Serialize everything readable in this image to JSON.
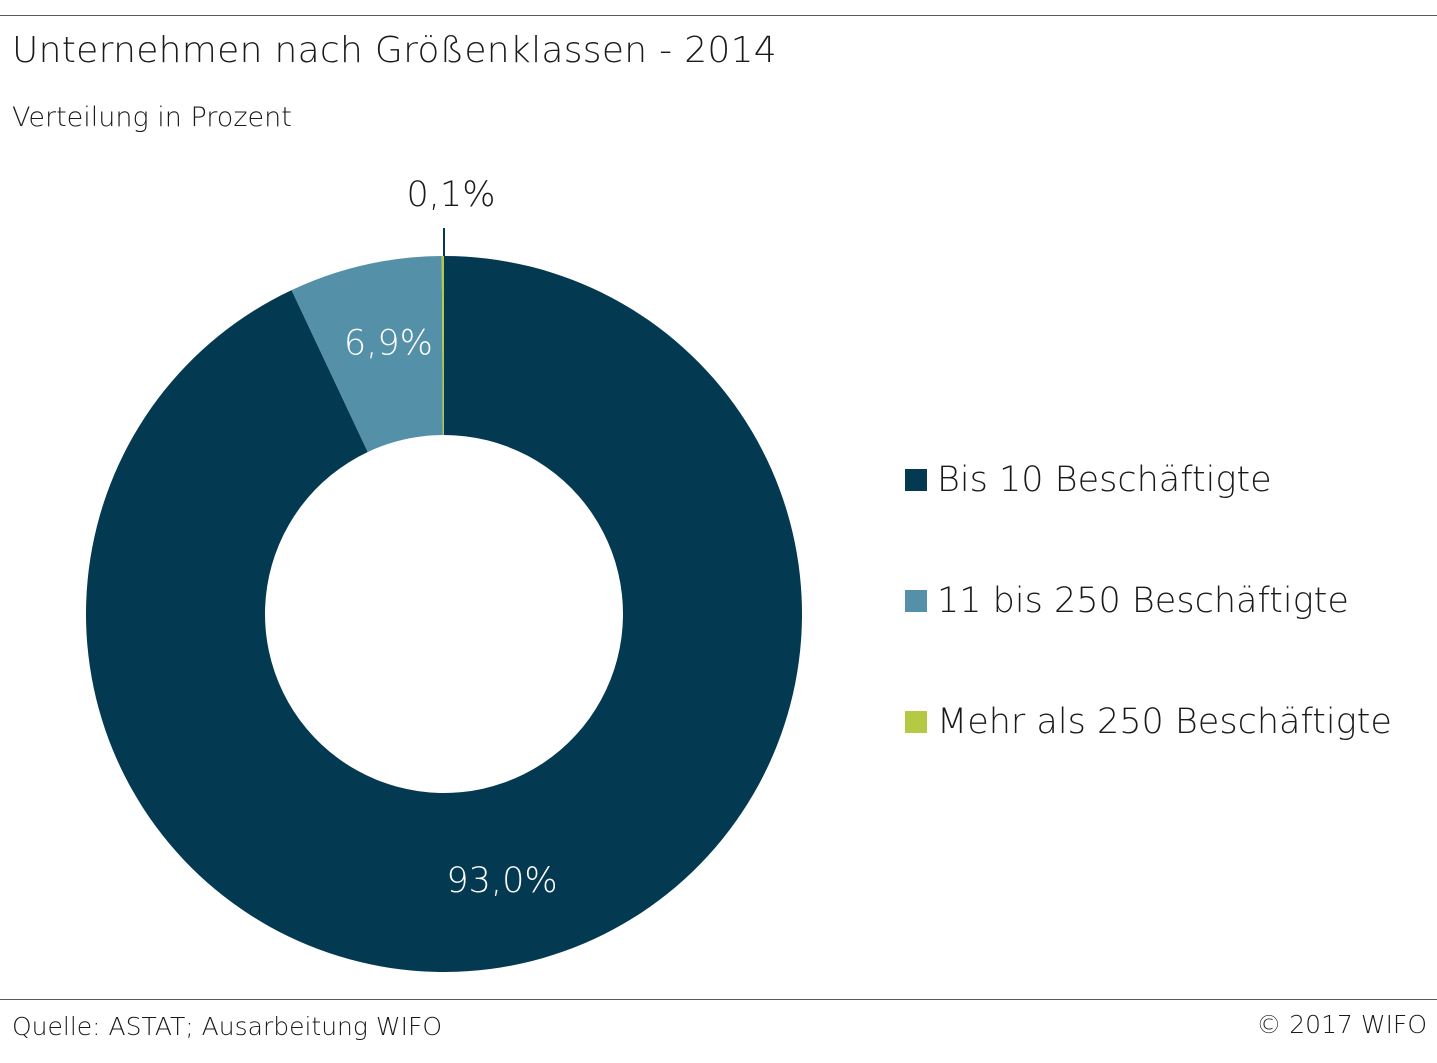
{
  "header": {
    "title": "Unternehmen nach Größenklassen - 2014",
    "subtitle": "Verteilung in Prozent"
  },
  "footer": {
    "source": "Quelle: ASTAT; Ausarbeitung WIFO",
    "copyright": "© 2017 WIFO"
  },
  "chart_data": {
    "type": "pie",
    "title": "Unternehmen nach Größenklassen - 2014",
    "subtitle": "Verteilung in Prozent",
    "variant": "donut",
    "legend_position": "right",
    "slices": [
      {
        "name": "Bis 10 Beschäftigte",
        "value": 93.0,
        "label": "93,0%",
        "color": "#033a51"
      },
      {
        "name": "11 bis 250 Beschäftigte",
        "value": 6.9,
        "label": "6,9%",
        "color": "#5491a8"
      },
      {
        "name": "Mehr als 250 Beschäftigte",
        "value": 0.1,
        "label": "0,1%",
        "color": "#b5c944"
      }
    ]
  }
}
